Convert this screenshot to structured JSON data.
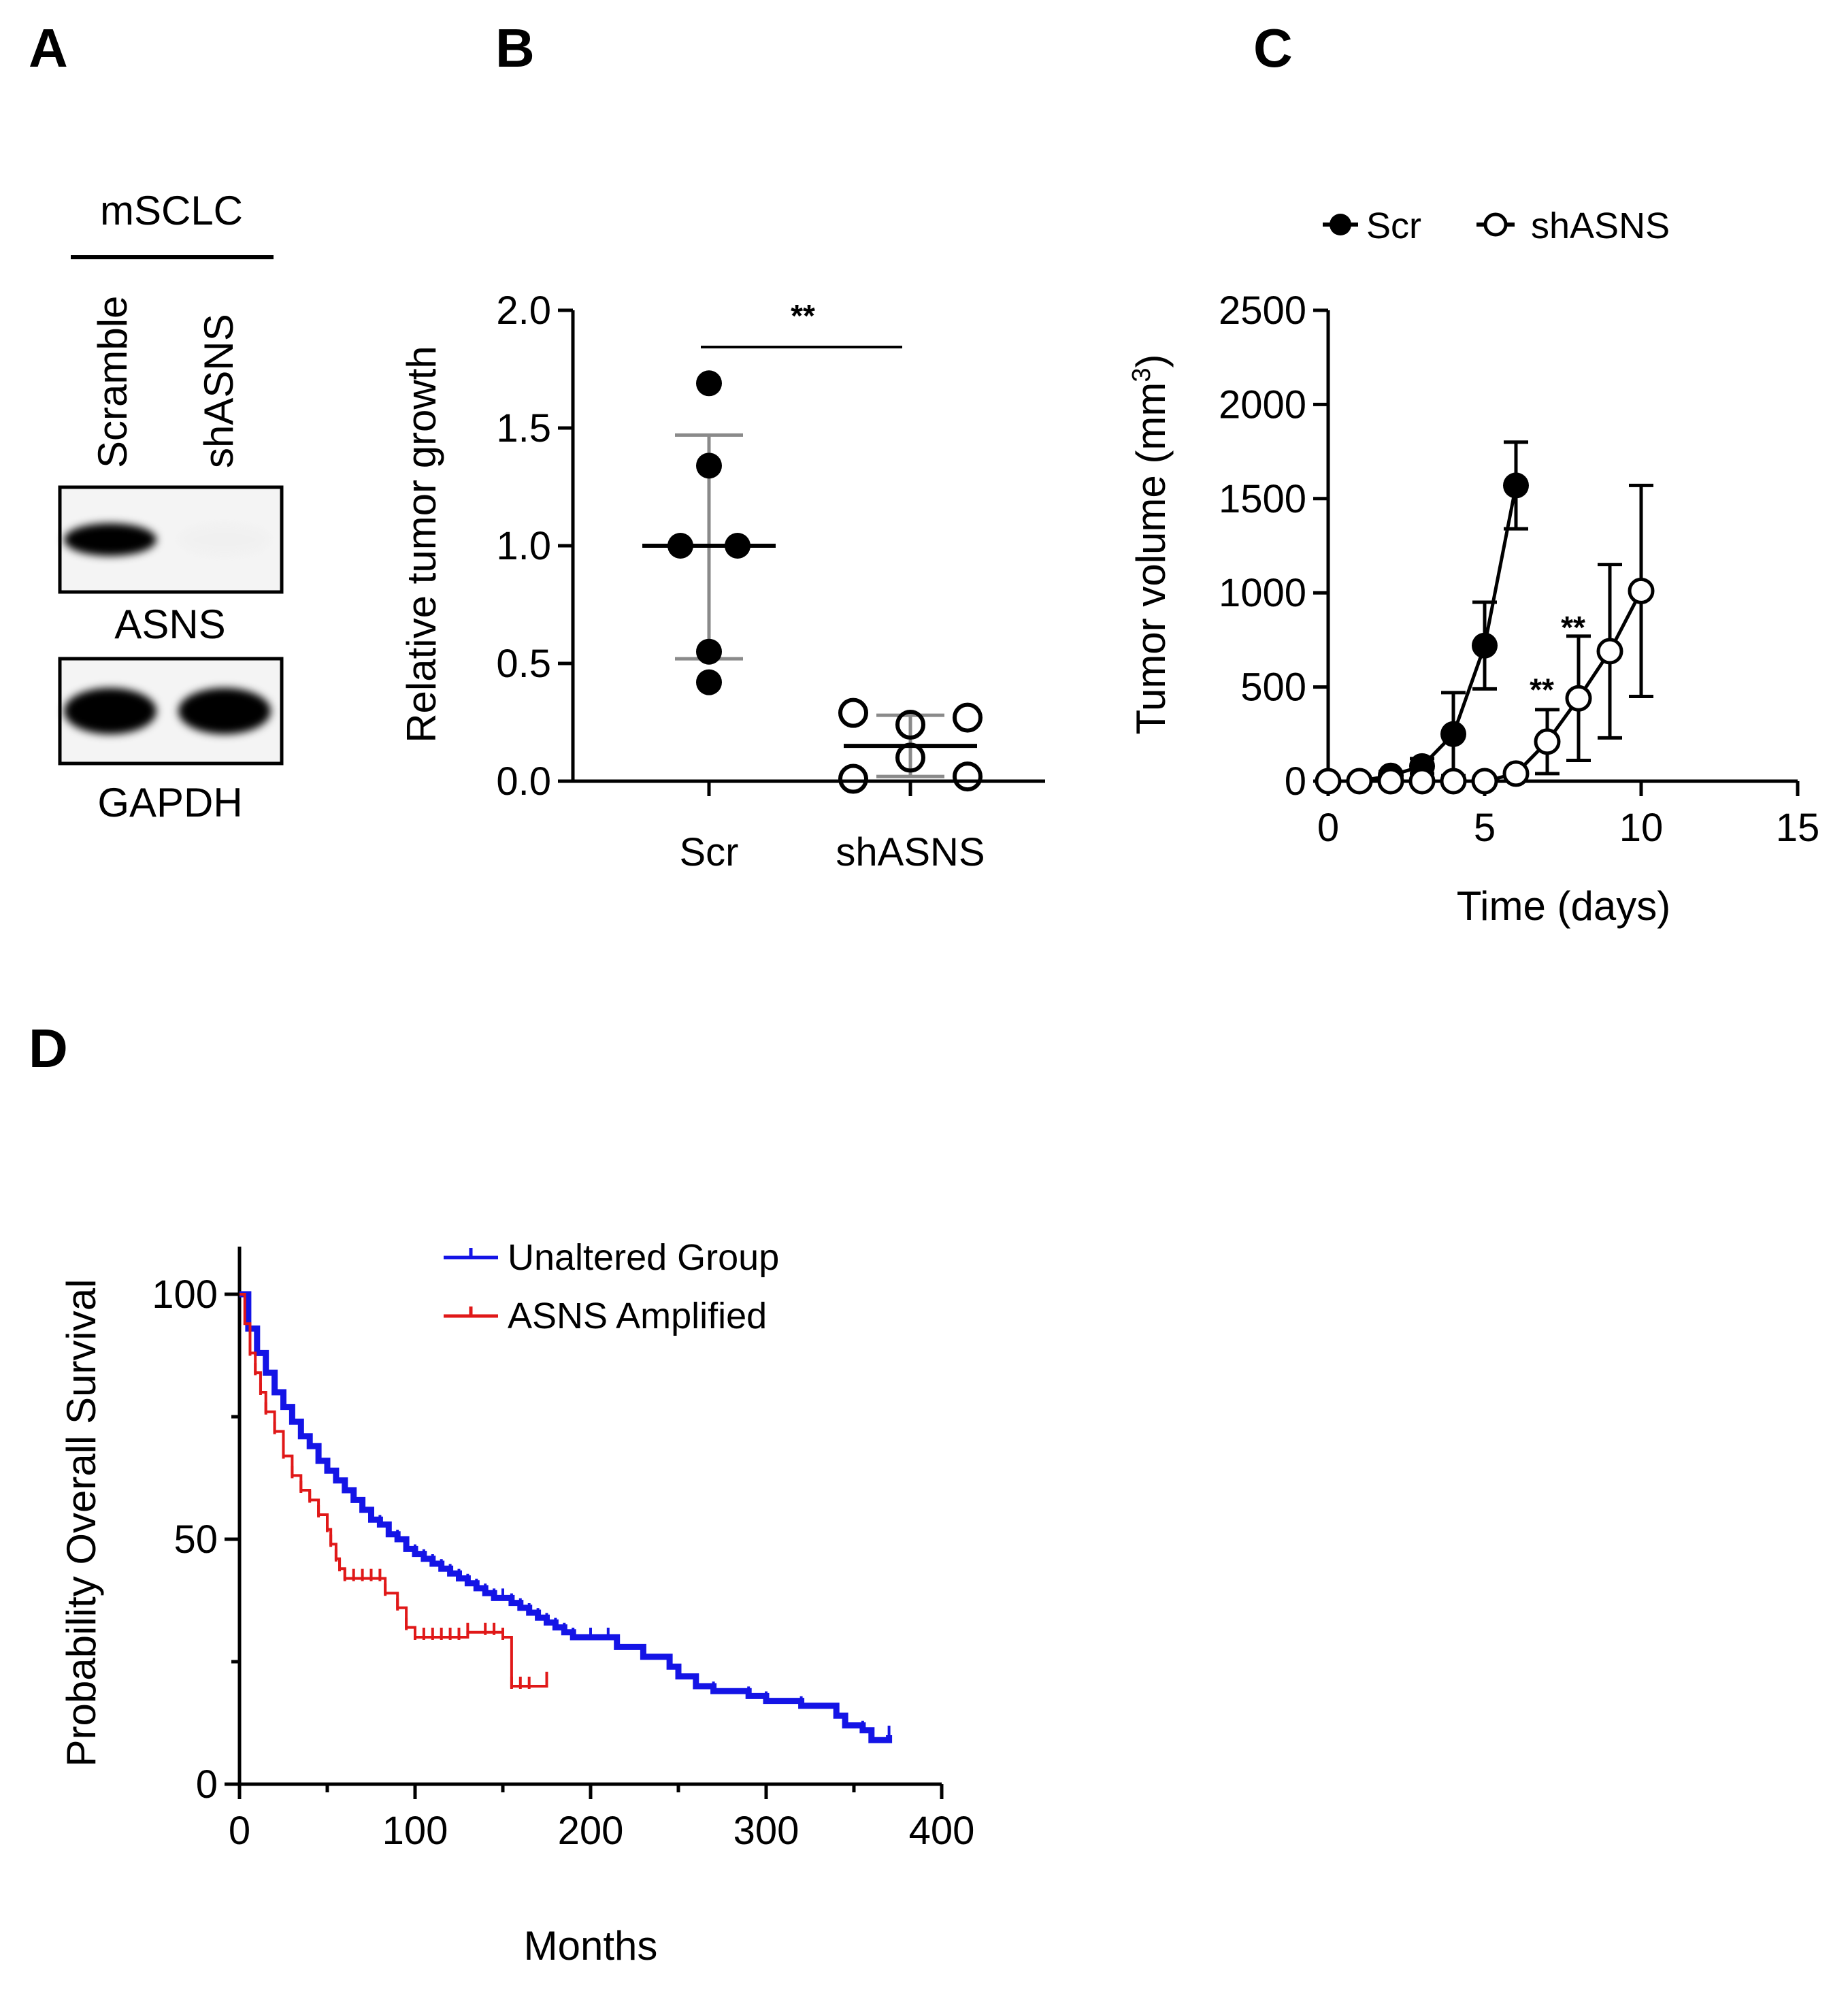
{
  "panels": {
    "A": {
      "letter": "A",
      "cell_line": "mSCLC",
      "lanes": [
        "Scramble",
        "shASNS"
      ],
      "blots": [
        {
          "label": "ASNS",
          "intensity": [
            1.0,
            0.12
          ]
        },
        {
          "label": "GAPDH",
          "intensity": [
            1.0,
            1.0
          ]
        }
      ]
    },
    "B": {
      "letter": "B"
    },
    "C": {
      "letter": "C"
    },
    "D": {
      "letter": "D"
    }
  },
  "chart_data": [
    {
      "panel": "B",
      "type": "scatter",
      "ylabel": "Relative tumor growth",
      "xlabel": "",
      "ylim": [
        0,
        2.0
      ],
      "yticks": [
        "0.0",
        "0.5",
        "1.0",
        "1.5",
        "2.0"
      ],
      "categories": [
        "Scr",
        "shASNS"
      ],
      "groups": [
        {
          "category": "Scr",
          "marker": "filled",
          "mean": 1.0,
          "sd_low": 0.52,
          "sd_high": 1.47,
          "points": [
            {
              "offset": 0,
              "y": 1.69
            },
            {
              "offset": 0,
              "y": 1.34
            },
            {
              "offset": -1,
              "y": 1.0
            },
            {
              "offset": 1,
              "y": 1.0
            },
            {
              "offset": 0,
              "y": 0.55
            },
            {
              "offset": 0,
              "y": 0.42
            }
          ]
        },
        {
          "category": "shASNS",
          "marker": "open",
          "mean": 0.15,
          "sd_low": 0.02,
          "sd_high": 0.28,
          "points": [
            {
              "offset": -2,
              "y": 0.29
            },
            {
              "offset": 2,
              "y": 0.27
            },
            {
              "offset": 0,
              "y": 0.24
            },
            {
              "offset": 0,
              "y": 0.1
            },
            {
              "offset": -2,
              "y": 0.01
            },
            {
              "offset": 2,
              "y": 0.02
            }
          ]
        }
      ],
      "significance": "**"
    },
    {
      "panel": "C",
      "type": "line",
      "ylabel": "Tumor volume (mm",
      "ylabel_sup": "3",
      "ylabel_end": ")",
      "xlabel": "Time (days)",
      "xlim": [
        0,
        15
      ],
      "ylim": [
        0,
        2500
      ],
      "xticks": [
        0,
        5,
        10,
        15
      ],
      "yticks": [
        0,
        500,
        1000,
        1500,
        2000,
        2500
      ],
      "legend_position": "top",
      "series": [
        {
          "name": "Scr",
          "marker": "filled",
          "x": [
            0,
            1,
            2,
            3,
            4,
            5,
            6
          ],
          "y": [
            0,
            0,
            30,
            80,
            250,
            720,
            1570
          ],
          "err": [
            0,
            0,
            20,
            40,
            220,
            230,
            230
          ]
        },
        {
          "name": "shASNS",
          "marker": "open",
          "x": [
            0,
            1,
            2,
            3,
            4,
            5,
            6,
            7,
            8,
            9,
            10
          ],
          "y": [
            0,
            0,
            0,
            0,
            0,
            0,
            40,
            210,
            440,
            690,
            1010
          ],
          "err": [
            0,
            0,
            0,
            0,
            0,
            0,
            20,
            170,
            330,
            460,
            560
          ]
        }
      ],
      "annotations": [
        {
          "text": "**",
          "x": 7,
          "y": 400
        },
        {
          "text": "**",
          "x": 8,
          "y": 730
        }
      ]
    },
    {
      "panel": "D",
      "type": "line",
      "ylabel": "Probability Overall Survival",
      "xlabel": "Months",
      "xlim": [
        0,
        400
      ],
      "ylim": [
        0,
        100
      ],
      "xticks": [
        0,
        100,
        200,
        300,
        400
      ],
      "yticks": [
        0,
        50,
        100
      ],
      "legend_position": "top",
      "series": [
        {
          "name": "Unaltered Group",
          "color": "#1414e6",
          "x": [
            0,
            5,
            10,
            15,
            20,
            25,
            30,
            35,
            40,
            45,
            50,
            55,
            60,
            65,
            70,
            75,
            80,
            85,
            90,
            95,
            100,
            105,
            110,
            115,
            120,
            125,
            130,
            135,
            140,
            145,
            150,
            155,
            160,
            165,
            170,
            175,
            180,
            185,
            190,
            200,
            210,
            215,
            230,
            245,
            250,
            260,
            270,
            290,
            300,
            320,
            340,
            345,
            355,
            360,
            370
          ],
          "y": [
            100,
            93,
            88,
            84,
            80,
            77,
            74,
            71,
            69,
            66,
            64,
            62,
            60,
            58,
            56,
            54,
            53,
            51,
            50,
            48,
            47,
            46,
            45,
            44,
            43,
            42,
            41,
            40,
            39,
            38,
            38,
            37,
            36,
            35,
            34,
            33,
            32,
            31,
            30,
            30,
            30,
            28,
            26,
            24,
            22,
            20,
            19,
            18,
            17,
            16,
            14,
            12,
            11,
            9,
            10
          ]
        },
        {
          "name": "ASNS Amplified",
          "color": "#e01818",
          "x": [
            0,
            3,
            6,
            9,
            12,
            15,
            20,
            25,
            30,
            35,
            40,
            45,
            50,
            52,
            55,
            57,
            60,
            65,
            70,
            75,
            80,
            83,
            90,
            95,
            100,
            105,
            110,
            115,
            120,
            125,
            130,
            140,
            145,
            150,
            155,
            160,
            165,
            175
          ],
          "y": [
            100,
            94,
            88,
            84,
            80,
            76,
            72,
            67,
            63,
            60,
            58,
            55,
            52,
            49,
            46,
            44,
            42,
            42,
            42,
            42,
            42,
            39,
            36,
            32,
            30,
            30,
            30,
            30,
            30,
            30,
            31,
            31,
            31,
            30,
            20,
            20,
            20,
            21
          ]
        }
      ]
    }
  ]
}
